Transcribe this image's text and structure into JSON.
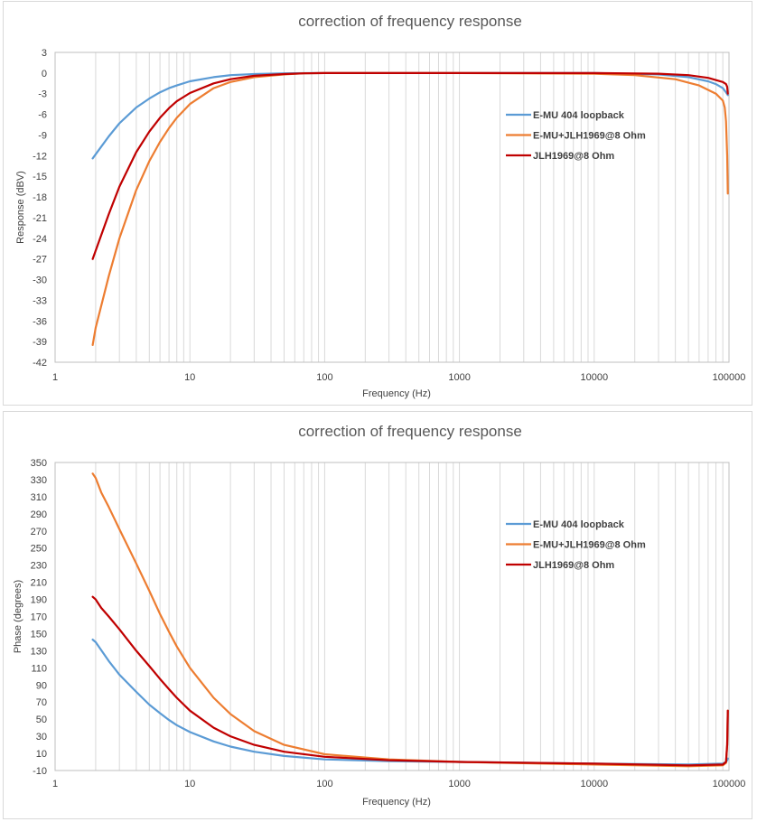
{
  "chart_data": [
    {
      "type": "line",
      "title": "correction of frequency response",
      "xlabel": "Frequency (Hz)",
      "ylabel": "Response (dBV)",
      "xscale": "log",
      "xlim": [
        1,
        100000
      ],
      "ylim": [
        -42,
        3
      ],
      "ytick_step": 3,
      "xticks": [
        "1",
        "10",
        "100",
        "1000",
        "10000",
        "100000"
      ],
      "yticks": [
        "3",
        "0",
        "-3",
        "-6",
        "-9",
        "-12",
        "-15",
        "-18",
        "-21",
        "-24",
        "-27",
        "-30",
        "-33",
        "-36",
        "-39",
        "-42"
      ],
      "grid": "vertical minor log gridlines",
      "legend": "right-center",
      "series": [
        {
          "name": "E-MU 404 loopback",
          "color": "#5b9bd5",
          "x": [
            1.9,
            2,
            2.5,
            3,
            4,
            5,
            6,
            7,
            8,
            10,
            15,
            20,
            30,
            50,
            70,
            100,
            1000,
            10000,
            30000,
            50000,
            70000,
            80000,
            90000,
            95000,
            98000
          ],
          "y": [
            -12.4,
            -11.8,
            -9.2,
            -7.3,
            -5,
            -3.7,
            -2.8,
            -2.2,
            -1.8,
            -1.2,
            -0.6,
            -0.3,
            -0.15,
            -0.05,
            -0.02,
            0,
            0,
            0,
            -0.2,
            -0.6,
            -1.2,
            -1.6,
            -2.2,
            -2.8,
            -3.2
          ]
        },
        {
          "name": "E-MU+JLH1969@8 Ohm",
          "color": "#ed7d31",
          "x": [
            1.9,
            2,
            2.5,
            3,
            4,
            5,
            6,
            7,
            8,
            10,
            15,
            20,
            30,
            50,
            70,
            100,
            1000,
            10000,
            20000,
            40000,
            60000,
            80000,
            90000,
            93000,
            95000,
            97000,
            98000
          ],
          "y": [
            -39.5,
            -37,
            -29.5,
            -24,
            -17,
            -12.8,
            -10,
            -8,
            -6.5,
            -4.5,
            -2.2,
            -1.3,
            -0.6,
            -0.2,
            -0.05,
            0,
            0,
            -0.1,
            -0.3,
            -0.9,
            -1.8,
            -3,
            -4,
            -5,
            -7,
            -12,
            -17.5
          ]
        },
        {
          "name": "JLH1969@8 Ohm",
          "color": "#c00000",
          "x": [
            1.9,
            2,
            2.5,
            3,
            4,
            5,
            6,
            7,
            8,
            10,
            15,
            20,
            30,
            50,
            70,
            100,
            1000,
            10000,
            30000,
            50000,
            70000,
            90000,
            95000,
            97000,
            98000
          ],
          "y": [
            -27,
            -25.8,
            -20.5,
            -16.5,
            -11.5,
            -8.5,
            -6.5,
            -5.1,
            -4.1,
            -2.9,
            -1.5,
            -0.9,
            -0.4,
            -0.15,
            -0.05,
            0,
            0,
            0,
            -0.1,
            -0.3,
            -0.7,
            -1.3,
            -1.6,
            -2,
            -3
          ]
        }
      ]
    },
    {
      "type": "line",
      "title": "correction of frequency response",
      "xlabel": "Frequency (Hz)",
      "ylabel": "Phase (degrees)",
      "xscale": "log",
      "xlim": [
        1,
        100000
      ],
      "ylim": [
        -10,
        350
      ],
      "ytick_step": 20,
      "xticks": [
        "1",
        "10",
        "100",
        "1000",
        "10000",
        "100000"
      ],
      "yticks": [
        "350",
        "330",
        "310",
        "290",
        "270",
        "250",
        "230",
        "210",
        "190",
        "170",
        "150",
        "130",
        "110",
        "90",
        "70",
        "50",
        "30",
        "10",
        "-10"
      ],
      "grid": "vertical minor log gridlines",
      "legend": "right-center",
      "series": [
        {
          "name": "E-MU 404 loopback",
          "color": "#5b9bd5",
          "x": [
            1.9,
            2,
            2.5,
            3,
            4,
            5,
            6,
            7,
            8,
            10,
            15,
            20,
            30,
            50,
            100,
            300,
            1000,
            10000,
            50000,
            90000,
            95000,
            97000,
            98000
          ],
          "y": [
            143,
            140,
            118,
            102,
            82,
            67,
            57,
            49,
            43,
            35,
            24,
            18,
            12,
            7,
            3,
            1,
            0,
            -2,
            -3,
            -2,
            0,
            2,
            4
          ]
        },
        {
          "name": "E-MU+JLH1969@8 Ohm",
          "color": "#ed7d31",
          "x": [
            1.9,
            2,
            2.2,
            2.5,
            3,
            4,
            5,
            6,
            7,
            8,
            10,
            15,
            20,
            30,
            50,
            100,
            300,
            1000,
            10000,
            50000,
            90000,
            95000,
            97000,
            98000
          ],
          "y": [
            337,
            332,
            315,
            298,
            272,
            232,
            200,
            173,
            152,
            135,
            110,
            75,
            56,
            36,
            20,
            9,
            3,
            0,
            -3,
            -5,
            -4,
            -1,
            20,
            60
          ]
        },
        {
          "name": "JLH1969@8 Ohm",
          "color": "#c00000",
          "x": [
            1.9,
            2,
            2.2,
            2.5,
            3,
            4,
            5,
            6,
            7,
            8,
            10,
            15,
            20,
            30,
            50,
            100,
            300,
            1000,
            10000,
            50000,
            90000,
            95000,
            97000,
            98000
          ],
          "y": [
            193,
            190,
            180,
            170,
            155,
            130,
            112,
            97,
            85,
            75,
            60,
            40,
            30,
            20,
            12,
            6,
            2,
            0,
            -2,
            -4,
            -3,
            0,
            20,
            60
          ]
        }
      ]
    }
  ]
}
